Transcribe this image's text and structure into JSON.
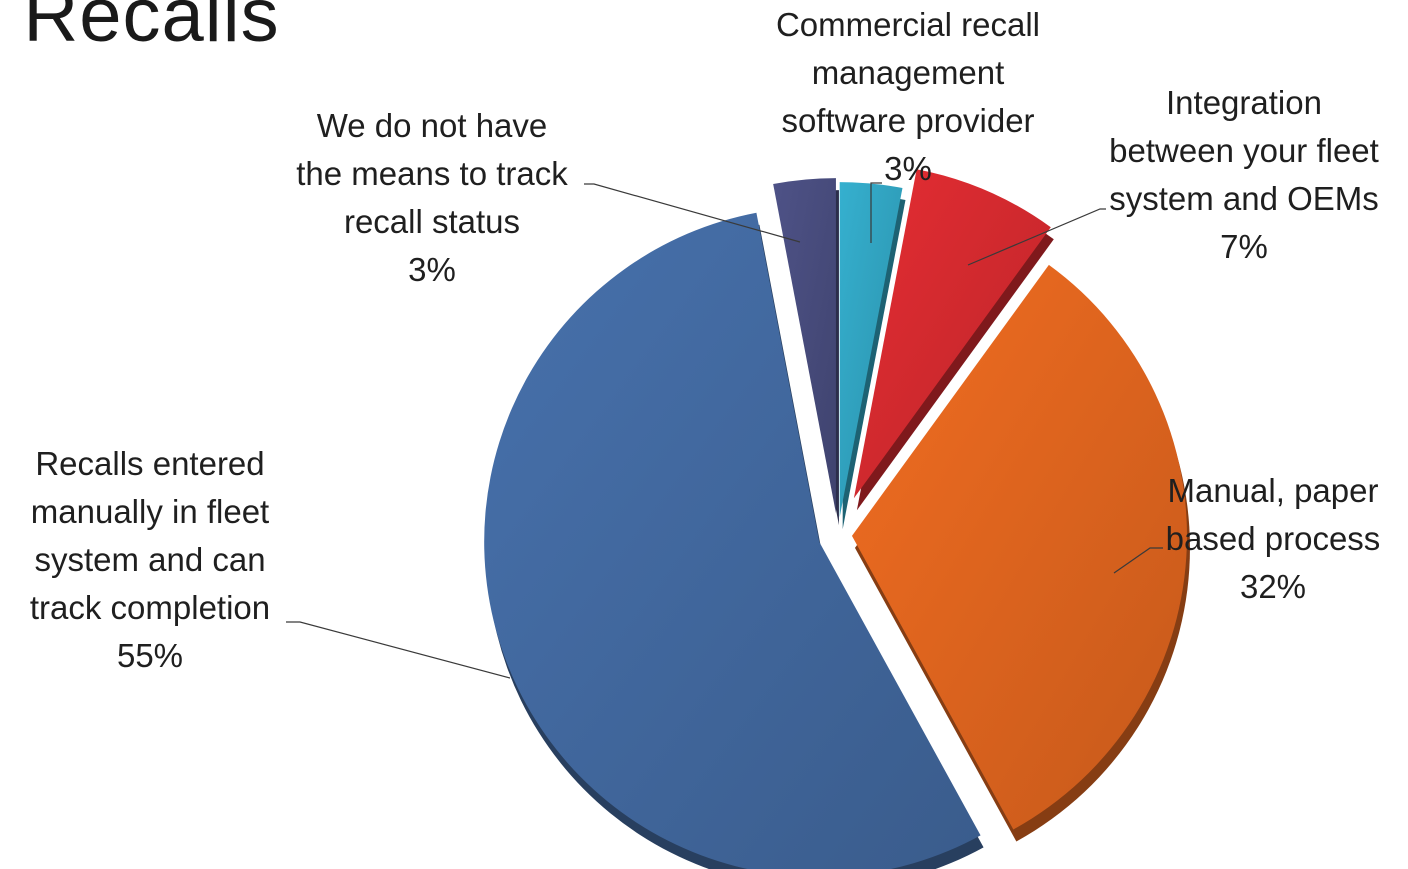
{
  "title": "e Recalls",
  "chart_data": {
    "type": "pie",
    "exploded": true,
    "three_d": true,
    "legend": "none",
    "slices": [
      {
        "label": "Commercial recall management software provider",
        "label_lines": [
          "Commercial recall",
          "management",
          "software provider"
        ],
        "value": 3,
        "value_label": "3%",
        "color": "#31A3C0"
      },
      {
        "label": "Integration between your fleet system and OEMs",
        "label_lines": [
          "Integration",
          "between your fleet",
          "system and OEMs"
        ],
        "value": 7,
        "value_label": "7%",
        "color": "#D42A2F"
      },
      {
        "label": "Manual, paper based process",
        "label_lines": [
          "Manual, paper",
          "based process"
        ],
        "value": 32,
        "value_label": "32%",
        "color": "#E0651F"
      },
      {
        "label": "Recalls entered manually in fleet system and can track completion",
        "label_lines": [
          "Recalls entered",
          "manually in fleet",
          "system and can",
          "track completion"
        ],
        "value": 55,
        "value_label": "55%",
        "color": "#42699F"
      },
      {
        "label": "We do not have the means to track recall status",
        "label_lines": [
          "We do not have",
          "the means to track",
          "recall status"
        ],
        "value": 3,
        "value_label": "3%",
        "color": "#484C7D"
      }
    ]
  }
}
